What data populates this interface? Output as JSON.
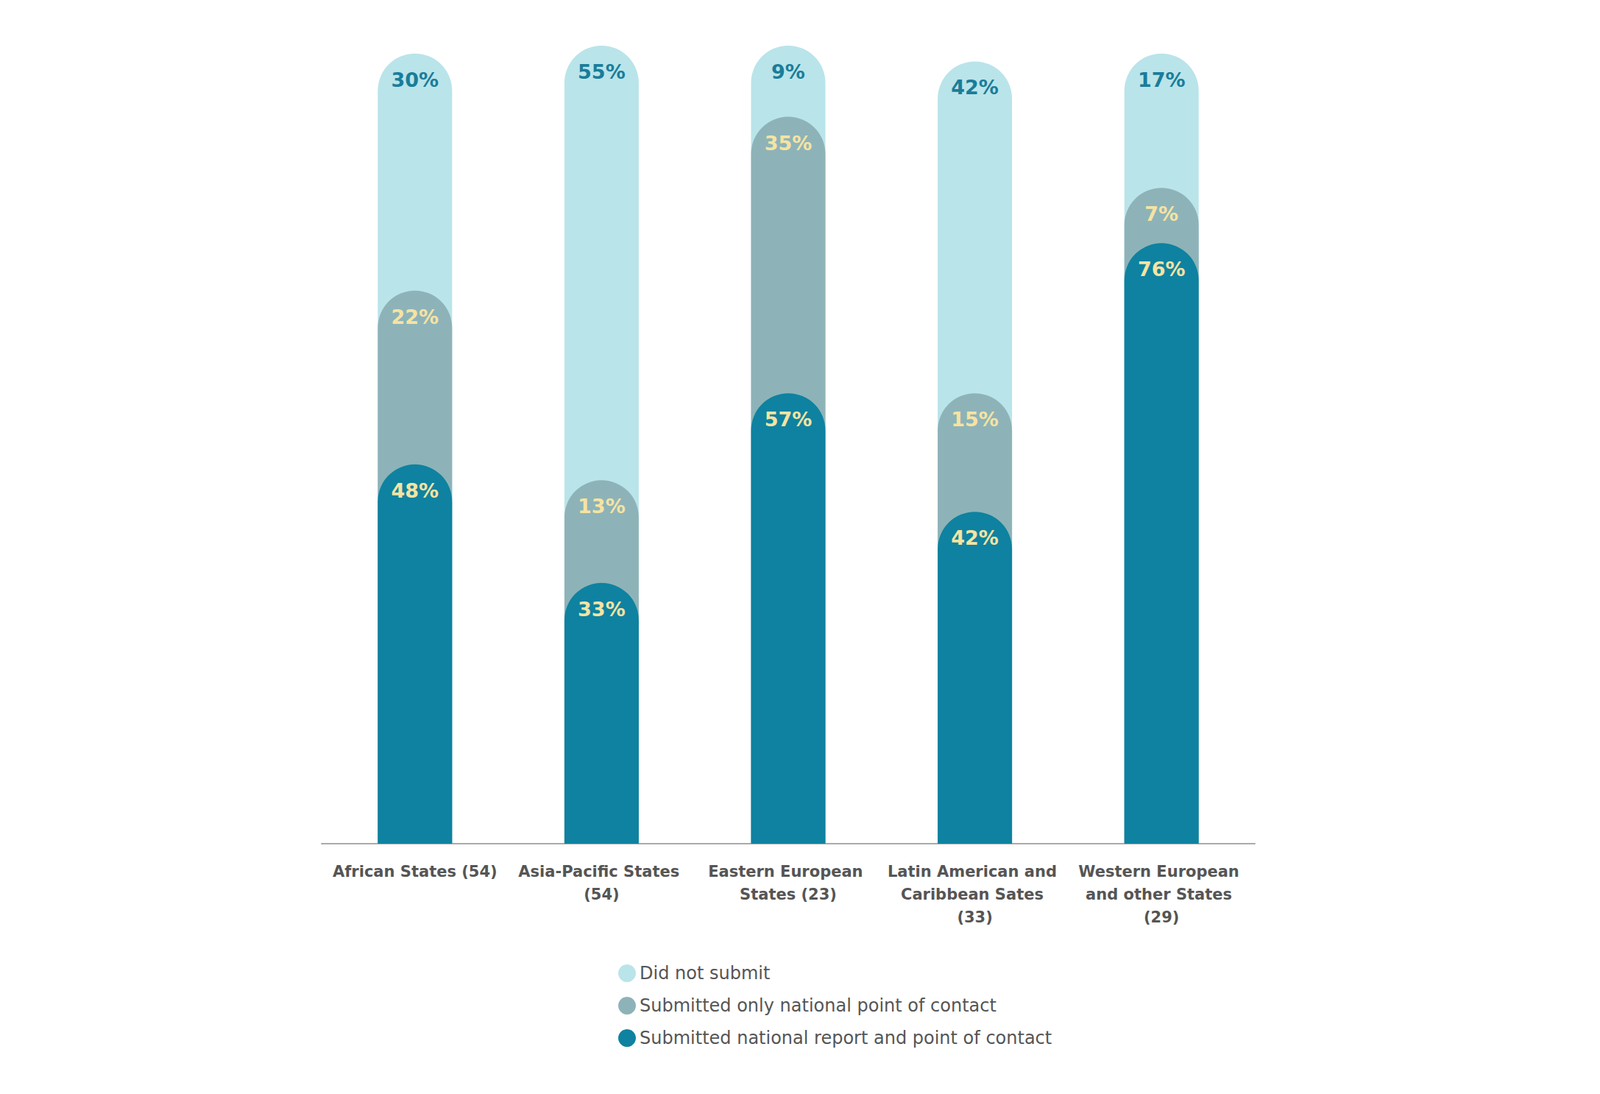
{
  "chart_data": {
    "type": "bar",
    "stacked": true,
    "categories": [
      "African States (54)",
      "Asia-Pacific States (54)",
      "Eastern European States (23)",
      "Latin American and Caribbean Sates (33)",
      "Western European and other States (29)"
    ],
    "series": [
      {
        "name": "Did not submit",
        "color": "#b9e4ea",
        "values": [
          30,
          55,
          9,
          42,
          17
        ],
        "value_labels": [
          "30%",
          "55%",
          "9%",
          "42%",
          "17%"
        ]
      },
      {
        "name": "Submitted only national point of contact",
        "color": "#8db3b8",
        "values": [
          22,
          13,
          35,
          15,
          7
        ],
        "value_labels": [
          "22%",
          "13%",
          "35%",
          "15%",
          "7%"
        ]
      },
      {
        "name": "Submitted national report and point of contact",
        "color": "#0e82a0",
        "values": [
          48,
          33,
          57,
          42,
          76
        ],
        "value_labels": [
          "48%",
          "33%",
          "57%",
          "42%",
          "76%"
        ]
      }
    ],
    "ylim": [
      0,
      101
    ],
    "grid": false,
    "tick_labels": "x",
    "data_labels": true,
    "legend": "bottom"
  }
}
